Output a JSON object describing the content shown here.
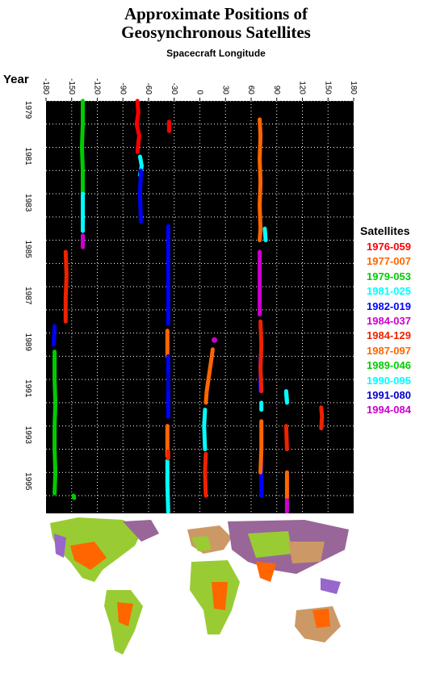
{
  "title_line1": "Approximate Positions of",
  "title_line2": "Geosynchronous Satellites",
  "chart_data": {
    "type": "scatter",
    "title": "Approximate Positions of Geosynchronous Satellites",
    "subtitle": "Spacecraft Longitude",
    "xlabel": "Spacecraft Longitude",
    "ylabel": "Year",
    "xlim": [
      -180,
      180
    ],
    "ylim": [
      1979,
      1996.8
    ],
    "x_ticks": [
      "-180",
      "-150",
      "-120",
      "-90",
      "-60",
      "-30",
      "0",
      "30",
      "60",
      "90",
      "120",
      "150",
      "180"
    ],
    "y_ticks": [
      "1979",
      "1981",
      "1983",
      "1985",
      "1987",
      "1989",
      "1991",
      "1993",
      "1995"
    ],
    "grid": true,
    "legend_title": "Satellites",
    "legend_position": "right",
    "series": [
      {
        "name": "1976-059",
        "color": "#ff0000",
        "segments": [
          [
            [
              -73,
              1979.0
            ],
            [
              -72,
              1979.5
            ],
            [
              -74,
              1980.0
            ],
            [
              -71,
              1980.5
            ],
            [
              -73,
              1981.2
            ]
          ],
          [
            [
              -36,
              1979.9
            ],
            [
              -36,
              1980.3
            ]
          ]
        ]
      },
      {
        "name": "1977-007",
        "color": "#ff6600",
        "segments": [
          [
            [
              70,
              1979.8
            ],
            [
              71,
              1980.5
            ],
            [
              70,
              1981.5
            ],
            [
              71,
              1982.5
            ],
            [
              70,
              1983.5
            ],
            [
              71,
              1984.5
            ],
            [
              70,
              1985.0
            ]
          ],
          [
            [
              -38,
              1988.9
            ],
            [
              -38,
              1990.0
            ]
          ],
          [
            [
              15,
              1989.7
            ],
            [
              14,
              1990.0
            ],
            [
              12,
              1990.5
            ],
            [
              10,
              1991.0
            ],
            [
              8,
              1991.5
            ],
            [
              7,
              1992.0
            ]
          ],
          [
            [
              -38,
              1993.0
            ],
            [
              -38,
              1994.3
            ]
          ],
          [
            [
              102,
              1995.0
            ],
            [
              102,
              1996.1
            ]
          ]
        ]
      },
      {
        "name": "1979-053",
        "color": "#00cc00",
        "segments": [
          [
            [
              -137,
              1979.0
            ],
            [
              -137,
              1980.0
            ],
            [
              -138,
              1981.0
            ],
            [
              -137,
              1982.0
            ],
            [
              -137,
              1983.0
            ]
          ],
          [
            [
              -170,
              1990.0
            ],
            [
              -170,
              1991.0
            ],
            [
              -169,
              1992.0
            ],
            [
              -170,
              1993.0
            ],
            [
              -170,
              1994.0
            ],
            [
              -169,
              1995.0
            ],
            [
              -170,
              1995.9
            ]
          ],
          [
            [
              -148,
              1996.0
            ],
            [
              -147,
              1996.1
            ]
          ]
        ]
      },
      {
        "name": "1981-025",
        "color": "#00ffff",
        "segments": [
          [
            [
              -70,
              1981.4
            ],
            [
              -68,
              1981.8
            ],
            [
              -70,
              1982.2
            ]
          ],
          [
            [
              -137,
              1983.0
            ],
            [
              -137,
              1984.0
            ],
            [
              -137,
              1984.6
            ]
          ],
          [
            [
              76,
              1984.5
            ],
            [
              77,
              1985.0
            ]
          ],
          [
            [
              72,
              1992.0
            ],
            [
              72,
              1992.3
            ]
          ],
          [
            [
              101,
              1991.5
            ],
            [
              102,
              1991.9
            ]
          ],
          [
            [
              6,
              1992.3
            ],
            [
              5,
              1993.0
            ],
            [
              6,
              1994.0
            ]
          ],
          [
            [
              -38,
              1994.5
            ],
            [
              -38,
              1995.5
            ],
            [
              -37,
              1996.7
            ]
          ]
        ]
      },
      {
        "name": "1982-019",
        "color": "#0000ff",
        "segments": [
          [
            [
              -69,
              1982.0
            ],
            [
              -70,
              1983.0
            ],
            [
              -69,
              1984.2
            ]
          ],
          [
            [
              -37,
              1984.4
            ],
            [
              -37,
              1985.5
            ],
            [
              -37,
              1986.5
            ],
            [
              -37,
              1987.5
            ],
            [
              -37,
              1988.6
            ]
          ],
          [
            [
              -170,
              1988.7
            ],
            [
              -171,
              1989.5
            ]
          ],
          [
            [
              -37,
              1990.0
            ],
            [
              -37,
              1991.0
            ],
            [
              -37,
              1992.6
            ]
          ],
          [
            [
              71,
              1990.0
            ],
            [
              71,
              1991.5
            ]
          ],
          [
            [
              72,
              1994.5
            ],
            [
              72,
              1996.0
            ]
          ]
        ]
      },
      {
        "name": "1984-037",
        "color": "#cc00cc",
        "segments": [
          [
            [
              -137,
              1984.8
            ],
            [
              -137,
              1985.3
            ]
          ],
          [
            [
              70,
              1985.5
            ],
            [
              70,
              1986.5
            ],
            [
              70,
              1987.5
            ],
            [
              70,
              1988.2
            ]
          ],
          [
            [
              17,
              1989.3
            ]
          ],
          [
            [
              102,
              1996.2
            ],
            [
              102,
              1996.7
            ]
          ]
        ]
      },
      {
        "name": "1984-129",
        "color": "#ee2200",
        "segments": [
          [
            [
              -157,
              1985.5
            ],
            [
              -156,
              1986.5
            ],
            [
              -157,
              1987.5
            ],
            [
              -157,
              1988.5
            ]
          ],
          [
            [
              71,
              1988.5
            ],
            [
              72,
              1989.5
            ],
            [
              71,
              1990.5
            ],
            [
              72,
              1991.5
            ]
          ],
          [
            [
              101,
              1993.0
            ],
            [
              102,
              1994.0
            ]
          ],
          [
            [
              7,
              1994.2
            ],
            [
              6,
              1995.0
            ],
            [
              7,
              1996.0
            ]
          ],
          [
            [
              -37,
              1994.1
            ],
            [
              -37,
              1994.4
            ]
          ],
          [
            [
              142,
              1992.2
            ],
            [
              143,
              1992.6
            ],
            [
              142,
              1993.1
            ]
          ]
        ]
      },
      {
        "name": "1987-097",
        "color": "#ff6600",
        "segments": [
          [
            [
              72,
              1992.8
            ],
            [
              72,
              1994.0
            ],
            [
              71,
              1995.0
            ]
          ]
        ]
      },
      {
        "name": "1989-046",
        "color": "#00cc00",
        "segments": [
          [
            [
              -170,
              1989.8
            ],
            [
              -170,
              1990.2
            ]
          ]
        ]
      },
      {
        "name": "1990-095",
        "color": "#00ffff",
        "segments": [
          [
            [
              101,
              1991.6
            ],
            [
              102,
              1992.0
            ]
          ]
        ]
      },
      {
        "name": "1991-080",
        "color": "#0000cc",
        "segments": [
          [
            [
              -37,
              1990.8
            ],
            [
              -37,
              1991.4
            ]
          ]
        ]
      },
      {
        "name": "1994-084",
        "color": "#cc00cc",
        "segments": [
          [
            [
              102,
              1996.3
            ],
            [
              102,
              1996.6
            ]
          ]
        ]
      }
    ]
  },
  "map": {
    "ocean_color": "#ffffff",
    "land_colors": [
      "#99cc33",
      "#ff6600",
      "#996699",
      "#cc9966",
      "#9966cc"
    ]
  }
}
